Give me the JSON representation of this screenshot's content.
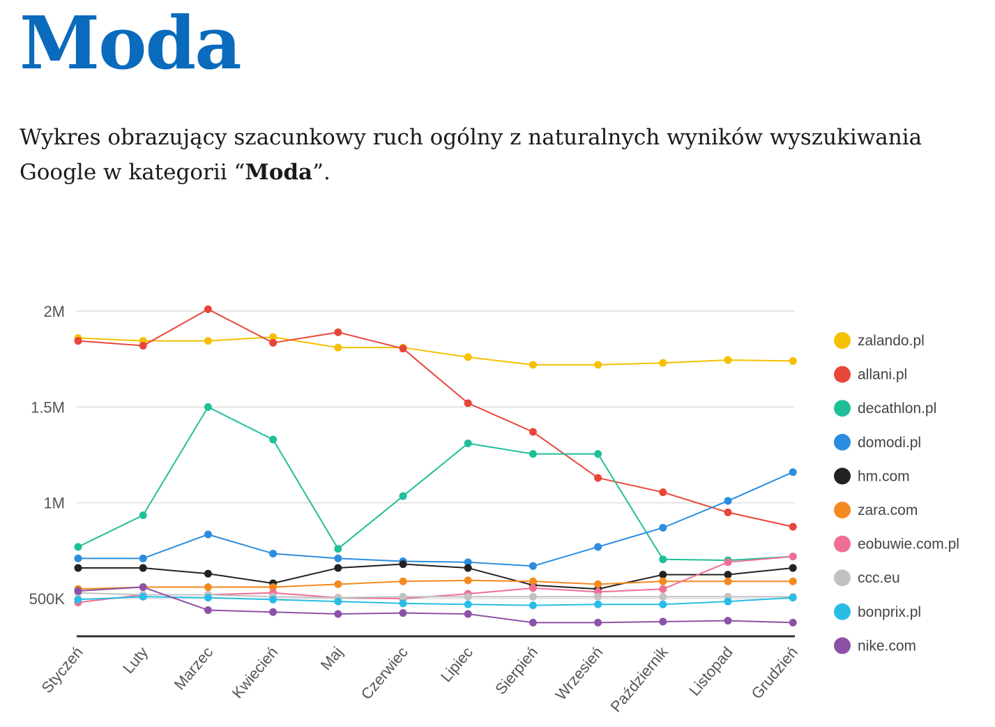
{
  "page": {
    "title": "Moda",
    "description_before": "Wykres obrazujący szacunkowy ruch ogólny z naturalnych wyników wyszukiwania Google w kategorii “",
    "description_bold": "Moda",
    "description_after": "”."
  },
  "chart_data": {
    "type": "line",
    "categories": [
      "Styczeń",
      "Luty",
      "Marzec",
      "Kwiecień",
      "Maj",
      "Czerwiec",
      "Lipiec",
      "Sierpień",
      "Wrzesień",
      "Październik",
      "Listopad",
      "Grudzień"
    ],
    "y_ticks": [
      {
        "value": 2000000,
        "label": "2M"
      },
      {
        "value": 1500000,
        "label": "1.5M"
      },
      {
        "value": 1000000,
        "label": "1M"
      },
      {
        "value": 500000,
        "label": "500K"
      }
    ],
    "ylim": [
      310000,
      2000000
    ],
    "grid": true,
    "legend_position": "right",
    "series": [
      {
        "name": "zalando.pl",
        "color": "#f5c000",
        "values": [
          1860000,
          1845000,
          1845000,
          1865000,
          1810000,
          1810000,
          1760000,
          1720000,
          1720000,
          1730000,
          1745000,
          1740000
        ]
      },
      {
        "name": "allani.pl",
        "color": "#e8463a",
        "values": [
          1845000,
          1820000,
          2010000,
          1835000,
          1890000,
          1805000,
          1520000,
          1370000,
          1130000,
          1055000,
          950000,
          875000
        ]
      },
      {
        "name": "decathlon.pl",
        "color": "#1fbf99",
        "values": [
          770000,
          935000,
          1500000,
          1330000,
          760000,
          1035000,
          1310000,
          1255000,
          1255000,
          705000,
          700000,
          720000
        ]
      },
      {
        "name": "domodi.pl",
        "color": "#2b8de0",
        "values": [
          710000,
          710000,
          835000,
          735000,
          710000,
          695000,
          690000,
          670000,
          770000,
          870000,
          1010000,
          1160000
        ]
      },
      {
        "name": "hm.com",
        "color": "#222222",
        "values": [
          660000,
          660000,
          630000,
          580000,
          660000,
          680000,
          660000,
          570000,
          550000,
          625000,
          625000,
          660000
        ]
      },
      {
        "name": "zara.com",
        "color": "#f4891f",
        "values": [
          550000,
          560000,
          560000,
          560000,
          575000,
          590000,
          595000,
          590000,
          575000,
          590000,
          590000,
          590000
        ]
      },
      {
        "name": "eobuwie.com.pl",
        "color": "#ef6f94",
        "values": [
          480000,
          520000,
          520000,
          530000,
          505000,
          500000,
          525000,
          555000,
          535000,
          550000,
          690000,
          720000
        ]
      },
      {
        "name": "ccc.eu",
        "color": "#c2c2c2",
        "values": [
          530000,
          520000,
          520000,
          510000,
          505000,
          510000,
          510000,
          510000,
          510000,
          510000,
          510000,
          510000
        ]
      },
      {
        "name": "bonprix.pl",
        "color": "#29bde6",
        "values": [
          495000,
          510000,
          505000,
          495000,
          485000,
          475000,
          470000,
          465000,
          470000,
          470000,
          485000,
          505000
        ]
      },
      {
        "name": "nike.com",
        "color": "#8c52a6",
        "values": [
          540000,
          560000,
          440000,
          430000,
          420000,
          425000,
          420000,
          375000,
          375000,
          380000,
          385000,
          375000
        ]
      }
    ]
  }
}
